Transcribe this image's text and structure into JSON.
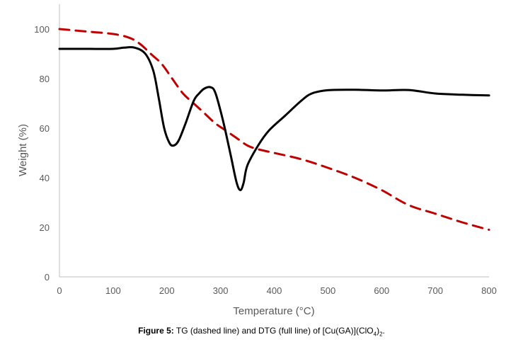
{
  "chart_data": {
    "type": "line",
    "xlabel": "Temperature (°C)",
    "ylabel": "Weight (%)",
    "xlim": [
      0,
      800
    ],
    "ylim": [
      0,
      110
    ],
    "x_ticks": [
      0,
      100,
      200,
      300,
      400,
      500,
      600,
      700,
      800
    ],
    "y_ticks": [
      0,
      20,
      40,
      60,
      80,
      100
    ],
    "grid": false,
    "legend": "none",
    "series": [
      {
        "style": "dashed",
        "color": "#c00000",
        "points": [
          [
            0,
            100
          ],
          [
            50,
            99
          ],
          [
            100,
            98
          ],
          [
            130,
            96.5
          ],
          [
            150,
            94
          ],
          [
            170,
            90
          ],
          [
            190,
            86
          ],
          [
            210,
            80
          ],
          [
            230,
            74
          ],
          [
            250,
            70
          ],
          [
            270,
            66
          ],
          [
            290,
            62
          ],
          [
            310,
            59
          ],
          [
            330,
            56
          ],
          [
            350,
            53
          ],
          [
            370,
            51.5
          ],
          [
            400,
            50
          ],
          [
            450,
            47.5
          ],
          [
            500,
            44
          ],
          [
            550,
            40
          ],
          [
            600,
            35
          ],
          [
            650,
            29
          ],
          [
            700,
            25.5
          ],
          [
            750,
            22
          ],
          [
            800,
            19
          ]
        ]
      },
      {
        "style": "solid",
        "color": "#000000",
        "points": [
          [
            0,
            92
          ],
          [
            50,
            92
          ],
          [
            100,
            92
          ],
          [
            120,
            92.5
          ],
          [
            140,
            92.5
          ],
          [
            160,
            90
          ],
          [
            175,
            83
          ],
          [
            185,
            72
          ],
          [
            195,
            60
          ],
          [
            205,
            54
          ],
          [
            213,
            53
          ],
          [
            222,
            55
          ],
          [
            235,
            62
          ],
          [
            250,
            71
          ],
          [
            260,
            74
          ],
          [
            270,
            76
          ],
          [
            282,
            76.5
          ],
          [
            290,
            74.5
          ],
          [
            300,
            67
          ],
          [
            310,
            58
          ],
          [
            320,
            48
          ],
          [
            330,
            38
          ],
          [
            337,
            35
          ],
          [
            343,
            38
          ],
          [
            350,
            45
          ],
          [
            370,
            53
          ],
          [
            390,
            59
          ],
          [
            420,
            65
          ],
          [
            450,
            71
          ],
          [
            470,
            74
          ],
          [
            500,
            75.3
          ],
          [
            550,
            75.5
          ],
          [
            600,
            75.2
          ],
          [
            650,
            75.4
          ],
          [
            700,
            74
          ],
          [
            750,
            73.5
          ],
          [
            800,
            73.2
          ]
        ]
      }
    ]
  },
  "caption": {
    "label": "Figure 5:",
    "text_before": " TG (dashed line) and DTG (full line) of [Cu(GA)](ClO",
    "subscript_1": "4",
    "text_middle": ")",
    "subscript_2": "2",
    "text_after": "."
  }
}
